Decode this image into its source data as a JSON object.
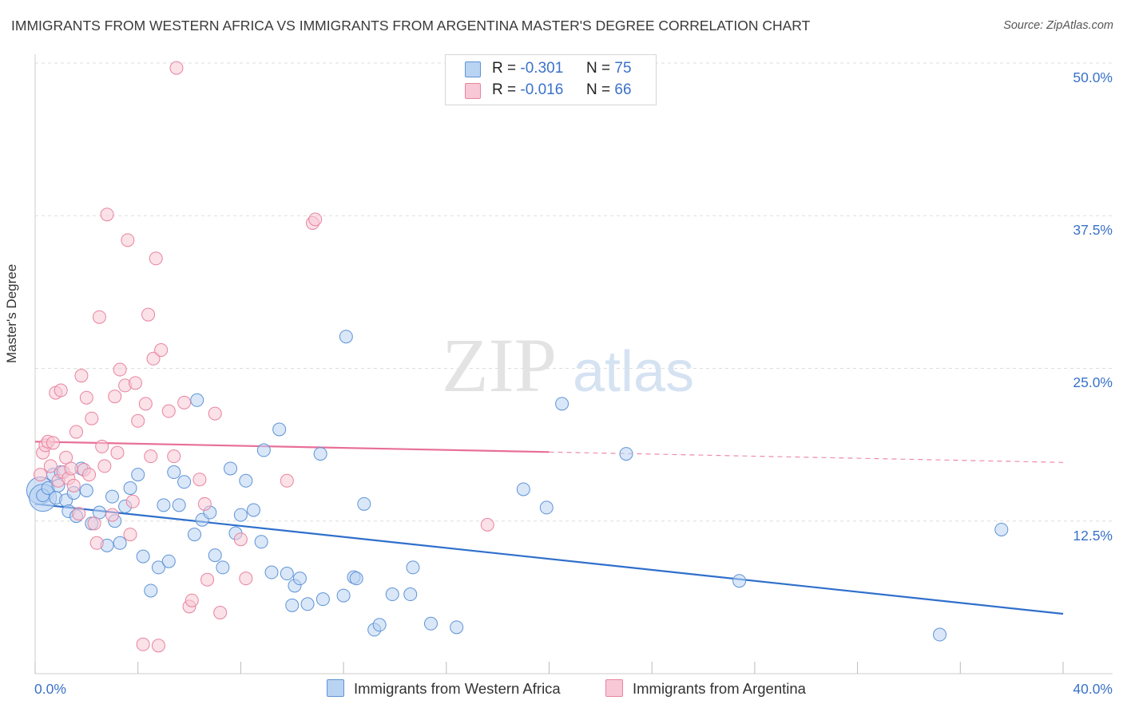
{
  "title": "IMMIGRANTS FROM WESTERN AFRICA VS IMMIGRANTS FROM ARGENTINA MASTER'S DEGREE CORRELATION CHART",
  "source": "Source: ZipAtlas.com",
  "watermark": {
    "zip": "ZIP",
    "atlas": "atlas"
  },
  "colors": {
    "blue_fill": "#b9d3f3",
    "blue_stroke": "#5f93d6",
    "blue_line": "#2f6fcc",
    "pink_fill": "#f8c8d6",
    "pink_stroke": "#e8849f",
    "pink_line": "#e86f96",
    "tick_text": "#3a72c9",
    "grid": "#dddddd"
  },
  "legend": {
    "rows": [
      {
        "r_label": "R =",
        "r_value": "-0.301",
        "n_label": "N =",
        "n_value": "75"
      },
      {
        "r_label": "R =",
        "r_value": "-0.016",
        "n_label": "N =",
        "n_value": "66"
      }
    ]
  },
  "chart_data": {
    "type": "scatter",
    "title": "IMMIGRANTS FROM WESTERN AFRICA VS IMMIGRANTS FROM ARGENTINA MASTER'S DEGREE CORRELATION CHART",
    "xlabel": "",
    "ylabel": "Master's Degree",
    "xlim": [
      0,
      40
    ],
    "ylim": [
      0,
      50
    ],
    "x_tick_labels": [
      "0.0%",
      "40.0%"
    ],
    "y_tick_labels": [
      {
        "value": 12.5,
        "label": "12.5%"
      },
      {
        "value": 25.0,
        "label": "25.0%"
      },
      {
        "value": 37.5,
        "label": "37.5%"
      },
      {
        "value": 50.0,
        "label": "50.0%"
      }
    ],
    "series": [
      {
        "name": "Immigrants from Western Africa",
        "color": "blue",
        "trend": {
          "x0": 0,
          "y0": 13.9,
          "x1": 40,
          "y1": 4.9,
          "solid_until": 40
        },
        "points": [
          [
            0.3,
            14.6
          ],
          [
            0.5,
            15.2
          ],
          [
            0.7,
            16.3
          ],
          [
            0.8,
            14.4
          ],
          [
            0.9,
            15.4
          ],
          [
            1.0,
            16.5
          ],
          [
            1.2,
            14.2
          ],
          [
            1.3,
            13.3
          ],
          [
            1.5,
            14.8
          ],
          [
            1.6,
            12.9
          ],
          [
            1.8,
            16.8
          ],
          [
            2.0,
            15.0
          ],
          [
            2.2,
            12.3
          ],
          [
            2.5,
            13.2
          ],
          [
            2.8,
            10.5
          ],
          [
            3.0,
            14.5
          ],
          [
            3.1,
            12.5
          ],
          [
            3.3,
            10.7
          ],
          [
            3.5,
            13.7
          ],
          [
            3.7,
            15.2
          ],
          [
            4.0,
            16.3
          ],
          [
            4.2,
            9.6
          ],
          [
            4.5,
            6.8
          ],
          [
            4.8,
            8.7
          ],
          [
            5.0,
            13.8
          ],
          [
            5.2,
            9.2
          ],
          [
            5.4,
            16.5
          ],
          [
            5.6,
            13.8
          ],
          [
            5.8,
            15.7
          ],
          [
            6.2,
            11.4
          ],
          [
            6.3,
            22.4
          ],
          [
            6.5,
            12.6
          ],
          [
            6.8,
            13.2
          ],
          [
            7.0,
            9.7
          ],
          [
            7.3,
            8.7
          ],
          [
            7.6,
            16.8
          ],
          [
            7.8,
            11.5
          ],
          [
            8.0,
            13.0
          ],
          [
            8.2,
            15.8
          ],
          [
            8.5,
            13.4
          ],
          [
            8.8,
            10.8
          ],
          [
            8.9,
            18.3
          ],
          [
            9.2,
            8.3
          ],
          [
            9.5,
            20.0
          ],
          [
            9.8,
            8.2
          ],
          [
            10.0,
            5.6
          ],
          [
            10.1,
            7.2
          ],
          [
            10.3,
            7.8
          ],
          [
            10.6,
            5.7
          ],
          [
            11.1,
            18.0
          ],
          [
            11.2,
            6.1
          ],
          [
            12.0,
            6.4
          ],
          [
            12.1,
            27.6
          ],
          [
            12.4,
            7.9
          ],
          [
            12.5,
            7.8
          ],
          [
            12.8,
            13.9
          ],
          [
            13.2,
            3.6
          ],
          [
            13.4,
            4.0
          ],
          [
            13.9,
            6.5
          ],
          [
            14.6,
            6.5
          ],
          [
            14.7,
            8.7
          ],
          [
            15.4,
            4.1
          ],
          [
            16.4,
            3.8
          ],
          [
            19.0,
            15.1
          ],
          [
            19.9,
            13.6
          ],
          [
            20.5,
            22.1
          ],
          [
            23.0,
            18.0
          ],
          [
            27.4,
            7.6
          ],
          [
            35.2,
            3.2
          ],
          [
            37.6,
            11.8
          ]
        ],
        "large_points": [
          [
            0.2,
            15.0
          ],
          [
            0.3,
            14.4
          ]
        ]
      },
      {
        "name": "Immigrants from Argentina",
        "color": "pink",
        "trend": {
          "x0": 0,
          "y0": 19.0,
          "x1": 40,
          "y1": 17.3,
          "solid_until": 20
        },
        "points": [
          [
            0.2,
            16.3
          ],
          [
            0.3,
            18.1
          ],
          [
            0.4,
            18.7
          ],
          [
            0.5,
            19.0
          ],
          [
            0.6,
            17.0
          ],
          [
            0.7,
            18.9
          ],
          [
            0.8,
            23.0
          ],
          [
            0.9,
            15.8
          ],
          [
            1.0,
            23.2
          ],
          [
            1.1,
            16.5
          ],
          [
            1.2,
            17.7
          ],
          [
            1.3,
            16.0
          ],
          [
            1.4,
            16.8
          ],
          [
            1.5,
            15.4
          ],
          [
            1.6,
            19.8
          ],
          [
            1.7,
            13.1
          ],
          [
            1.8,
            24.4
          ],
          [
            1.9,
            16.7
          ],
          [
            2.0,
            22.6
          ],
          [
            2.1,
            16.3
          ],
          [
            2.2,
            20.9
          ],
          [
            2.3,
            12.3
          ],
          [
            2.4,
            10.7
          ],
          [
            2.5,
            29.2
          ],
          [
            2.6,
            18.6
          ],
          [
            2.7,
            17.0
          ],
          [
            2.8,
            37.6
          ],
          [
            3.0,
            13.0
          ],
          [
            3.1,
            22.7
          ],
          [
            3.2,
            18.1
          ],
          [
            3.3,
            24.9
          ],
          [
            3.5,
            23.6
          ],
          [
            3.6,
            35.5
          ],
          [
            3.7,
            11.4
          ],
          [
            3.8,
            14.1
          ],
          [
            3.9,
            23.8
          ],
          [
            4.0,
            20.7
          ],
          [
            4.2,
            2.4
          ],
          [
            4.3,
            22.1
          ],
          [
            4.4,
            29.4
          ],
          [
            4.5,
            17.8
          ],
          [
            4.6,
            25.8
          ],
          [
            4.7,
            34.0
          ],
          [
            4.8,
            2.3
          ],
          [
            4.9,
            26.5
          ],
          [
            5.2,
            21.5
          ],
          [
            5.4,
            17.8
          ],
          [
            5.5,
            49.6
          ],
          [
            5.8,
            22.2
          ],
          [
            6.0,
            5.5
          ],
          [
            6.1,
            6.0
          ],
          [
            6.4,
            15.9
          ],
          [
            6.6,
            13.9
          ],
          [
            6.7,
            7.7
          ],
          [
            7.0,
            21.3
          ],
          [
            7.2,
            5.0
          ],
          [
            8.0,
            11.0
          ],
          [
            8.2,
            7.8
          ],
          [
            9.8,
            15.8
          ],
          [
            10.8,
            36.9
          ],
          [
            10.9,
            37.2
          ],
          [
            17.6,
            12.2
          ]
        ]
      }
    ]
  },
  "axes": {
    "y_title": "Master's Degree",
    "x_min_label": "0.0%",
    "x_max_label": "40.0%"
  },
  "bottom_legend": {
    "blue_label": "Immigrants from Western Africa",
    "pink_label": "Immigrants from Argentina"
  }
}
